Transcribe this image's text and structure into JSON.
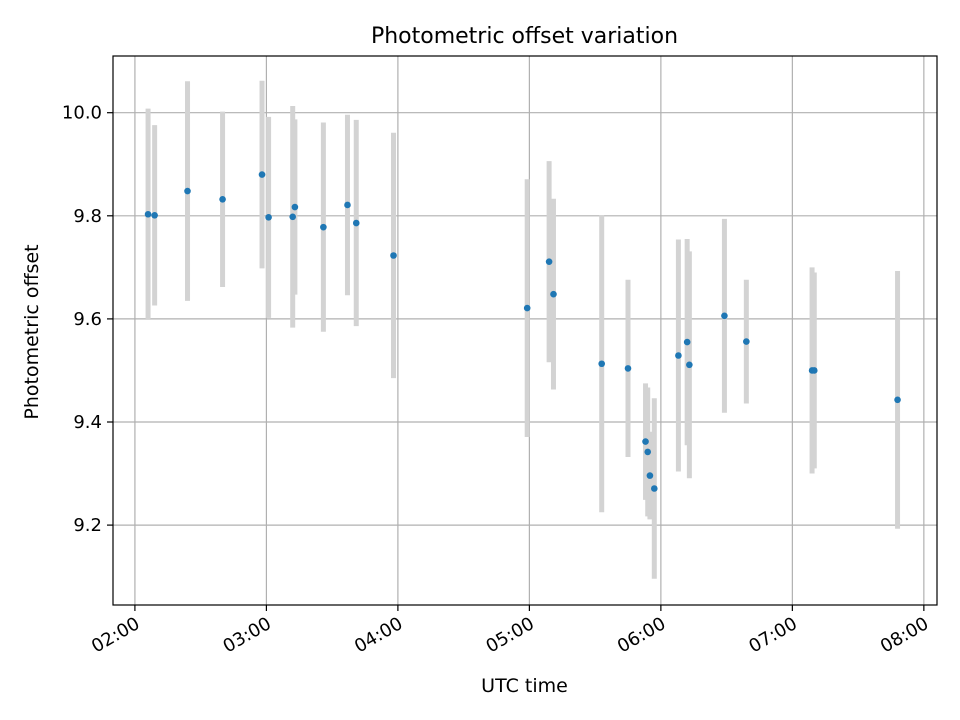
{
  "chart_data": {
    "type": "scatter",
    "title": "Photometric offset variation",
    "xlabel": "UTC time",
    "ylabel": "Photometric offset",
    "x_unit": "UTC time (HH:MM)",
    "xlim": [
      "01:50",
      "08:06"
    ],
    "ylim": [
      9.045,
      10.11
    ],
    "x_ticks": [
      "02:00",
      "03:00",
      "04:00",
      "05:00",
      "06:00",
      "07:00",
      "08:00"
    ],
    "y_ticks": [
      9.2,
      9.4,
      9.6,
      9.8,
      10.0
    ],
    "y_tick_labels": [
      "9.2",
      "9.4",
      "9.6",
      "9.8",
      "10.0"
    ],
    "grid": true,
    "point_color": "#1f77b4",
    "errorbar_color": "#d3d3d3",
    "points": [
      {
        "x": "02:06",
        "y": 9.803,
        "yerr": 0.205
      },
      {
        "x": "02:09",
        "y": 9.801,
        "yerr": 0.175
      },
      {
        "x": "02:24",
        "y": 9.848,
        "yerr": 0.213
      },
      {
        "x": "02:40",
        "y": 9.832,
        "yerr": 0.17
      },
      {
        "x": "02:58",
        "y": 9.88,
        "yerr": 0.182
      },
      {
        "x": "03:01",
        "y": 9.797,
        "yerr": 0.195
      },
      {
        "x": "03:12",
        "y": 9.798,
        "yerr": 0.215
      },
      {
        "x": "03:13",
        "y": 9.817,
        "yerr": 0.17
      },
      {
        "x": "03:26",
        "y": 9.778,
        "yerr": 0.203
      },
      {
        "x": "03:37",
        "y": 9.821,
        "yerr": 0.175
      },
      {
        "x": "03:41",
        "y": 9.786,
        "yerr": 0.2
      },
      {
        "x": "03:58",
        "y": 9.723,
        "yerr": 0.238
      },
      {
        "x": "04:59",
        "y": 9.621,
        "yerr": 0.25
      },
      {
        "x": "05:09",
        "y": 9.711,
        "yerr": 0.195
      },
      {
        "x": "05:11",
        "y": 9.648,
        "yerr": 0.185
      },
      {
        "x": "05:33",
        "y": 9.513,
        "yerr": 0.288
      },
      {
        "x": "05:45",
        "y": 9.504,
        "yerr": 0.172
      },
      {
        "x": "05:53",
        "y": 9.362,
        "yerr": 0.113
      },
      {
        "x": "05:54",
        "y": 9.342,
        "yerr": 0.125
      },
      {
        "x": "05:55",
        "y": 9.296,
        "yerr": 0.085
      },
      {
        "x": "05:57",
        "y": 9.271,
        "yerr": 0.175
      },
      {
        "x": "06:08",
        "y": 9.529,
        "yerr": 0.225
      },
      {
        "x": "06:12",
        "y": 9.555,
        "yerr": 0.2
      },
      {
        "x": "06:13",
        "y": 9.511,
        "yerr": 0.22
      },
      {
        "x": "06:29",
        "y": 9.606,
        "yerr": 0.188
      },
      {
        "x": "06:39",
        "y": 9.556,
        "yerr": 0.12
      },
      {
        "x": "07:09",
        "y": 9.5,
        "yerr": 0.2
      },
      {
        "x": "07:10",
        "y": 9.5,
        "yerr": 0.19
      },
      {
        "x": "07:48",
        "y": 9.443,
        "yerr": 0.25
      }
    ]
  }
}
